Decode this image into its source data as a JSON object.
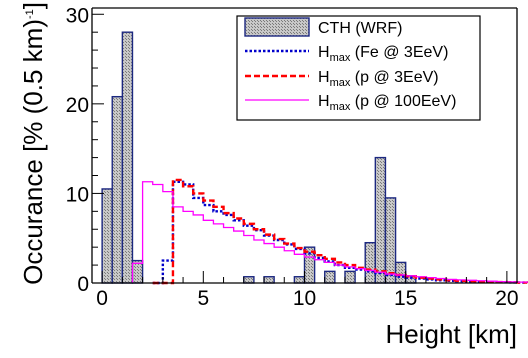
{
  "chart_data": {
    "type": "histogram",
    "xlabel": "Height [km]",
    "ylabel_main": "Occurance [% (0.5 km)",
    "ylabel_superscript": "-1",
    "ylabel_close": "]",
    "xlim": [
      -0.5,
      20.5
    ],
    "ylim": [
      0,
      30.7
    ],
    "x_ticks": [
      0,
      5,
      10,
      15,
      20
    ],
    "y_ticks": [
      0,
      10,
      20,
      30
    ],
    "bin_width": 0.5,
    "series": [
      {
        "name": "CTH (WRF)",
        "style": "filled",
        "fill_color": "#b4b4b4",
        "line_color": "#1c2880",
        "bin_starts": [
          0,
          0.5,
          1.0,
          1.5,
          7.0,
          8.0,
          9.5,
          10.0,
          11.0,
          12.0,
          13.0,
          13.5,
          14.0,
          14.5,
          15.0
        ],
        "values": [
          10.5,
          20.8,
          28.0,
          2.5,
          0.7,
          0.7,
          0.7,
          4.0,
          1.3,
          1.3,
          4.5,
          14.0,
          9.5,
          2.3,
          0.8
        ]
      },
      {
        "name": "Hmax (Fe @ 3EeV)",
        "label_main": "H",
        "label_sub": "max",
        "label_rest": " (Fe @ 3EeV)",
        "style": "dotted",
        "line_color": "#0000cc",
        "x_start": 2.5,
        "values": [
          0,
          2.5,
          11.3,
          11.0,
          9.5,
          8.7,
          8.0,
          7.6,
          7.0,
          6.4,
          5.9,
          5.3,
          4.8,
          4.3,
          3.8,
          3.3,
          2.8,
          2.4,
          2.0,
          1.7,
          1.5,
          1.3,
          1.1,
          0.9,
          0.7,
          0.6,
          0.5,
          0.4,
          0.3,
          0.25,
          0.2,
          0.15,
          0.12,
          0.1,
          0.08,
          0.06,
          0.05
        ]
      },
      {
        "name": "Hmax (p @ 3EeV)",
        "label_main": "H",
        "label_sub": "max",
        "label_rest": " (p @ 3EeV)",
        "style": "dashed",
        "line_color": "#ff0000",
        "x_start": 2.5,
        "values": [
          0,
          0,
          11.5,
          10.8,
          10.0,
          9.2,
          8.5,
          7.8,
          7.2,
          6.6,
          6.0,
          5.4,
          4.9,
          4.4,
          3.9,
          3.5,
          3.1,
          2.7,
          2.3,
          2.0,
          1.7,
          1.5,
          1.3,
          1.1,
          0.9,
          0.75,
          0.6,
          0.5,
          0.4,
          0.3,
          0.25,
          0.2,
          0.15,
          0.12,
          0.1,
          0.08,
          0.05
        ]
      },
      {
        "name": "Hmax (p @ 100EeV)",
        "label_main": "H",
        "label_sub": "max",
        "label_rest": " (p @ 100EeV)",
        "style": "solid",
        "line_color": "#ff00ff",
        "x_start": 1.5,
        "values": [
          2.2,
          11.3,
          11.0,
          10.2,
          8.5,
          8.0,
          7.6,
          7.0,
          6.6,
          6.2,
          5.8,
          5.3,
          4.8,
          4.4,
          4.0,
          3.6,
          3.2,
          2.9,
          2.6,
          2.3,
          2.0,
          1.8,
          1.6,
          1.4,
          1.2,
          1.0,
          0.9,
          0.8,
          0.7,
          0.6,
          0.5,
          0.4,
          0.35,
          0.3,
          0.25,
          0.2,
          0.15,
          0.12,
          0.1
        ]
      }
    ],
    "legend_position": "top-right",
    "grid": false
  }
}
